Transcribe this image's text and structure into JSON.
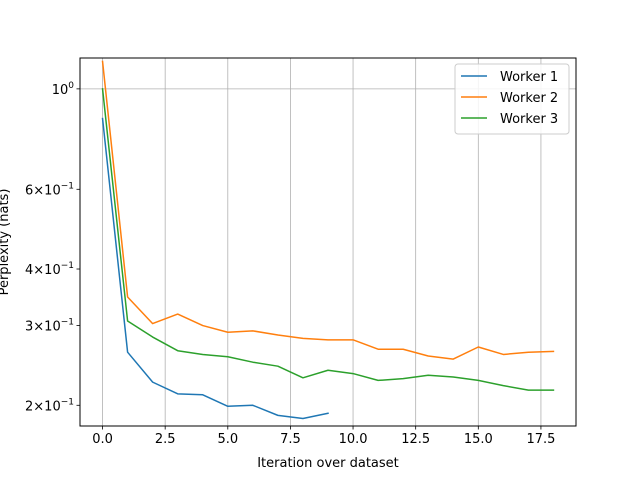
{
  "chart_data": {
    "type": "line",
    "xlabel": "Iteration over dataset",
    "ylabel": "Perplexity (nats)",
    "xscale": "linear",
    "yscale": "log",
    "xlim": [
      -0.9,
      18.9
    ],
    "ylim": [
      0.18,
      1.17
    ],
    "grid": "x and y major",
    "legend_position": "top-right",
    "x_ticks": [
      {
        "value": 0,
        "label": "0.0"
      },
      {
        "value": 2.5,
        "label": "2.5"
      },
      {
        "value": 5,
        "label": "5.0"
      },
      {
        "value": 7.5,
        "label": "7.5"
      },
      {
        "value": 10,
        "label": "10.0"
      },
      {
        "value": 12.5,
        "label": "12.5"
      },
      {
        "value": 15,
        "label": "15.0"
      },
      {
        "value": 17.5,
        "label": "17.5"
      }
    ],
    "y_ticks": [
      {
        "value": 0.2,
        "mantissa": "2",
        "base": "10",
        "exp": "−1"
      },
      {
        "value": 0.3,
        "mantissa": "3",
        "base": "10",
        "exp": "−1"
      },
      {
        "value": 0.4,
        "mantissa": "4",
        "base": "10",
        "exp": "−1"
      },
      {
        "value": 0.6,
        "mantissa": "6",
        "base": "10",
        "exp": "−1"
      },
      {
        "value": 1.0,
        "mantissa": "",
        "base": "10",
        "exp": "0"
      }
    ],
    "series": [
      {
        "name": "Worker 1",
        "color": "#1f77b4",
        "x": [
          0,
          1,
          2,
          3,
          4,
          5,
          6,
          7,
          8,
          9
        ],
        "y": [
          0.86,
          0.262,
          0.225,
          0.212,
          0.211,
          0.199,
          0.2,
          0.19,
          0.187,
          0.192
        ]
      },
      {
        "name": "Worker 2",
        "color": "#ff7f0e",
        "x": [
          0,
          1,
          2,
          3,
          4,
          5,
          6,
          7,
          8,
          9,
          10,
          11,
          12,
          13,
          14,
          15,
          16,
          17,
          18
        ],
        "y": [
          1.15,
          0.347,
          0.303,
          0.318,
          0.3,
          0.29,
          0.292,
          0.286,
          0.281,
          0.279,
          0.279,
          0.266,
          0.266,
          0.257,
          0.253,
          0.269,
          0.259,
          0.262,
          0.263
        ]
      },
      {
        "name": "Worker 3",
        "color": "#2ca02c",
        "x": [
          0,
          1,
          2,
          3,
          4,
          5,
          6,
          7,
          8,
          9,
          10,
          11,
          12,
          13,
          14,
          15,
          16,
          17,
          18
        ],
        "y": [
          1.0,
          0.307,
          0.283,
          0.264,
          0.259,
          0.256,
          0.249,
          0.244,
          0.23,
          0.239,
          0.235,
          0.227,
          0.229,
          0.233,
          0.231,
          0.227,
          0.221,
          0.216,
          0.216
        ]
      }
    ]
  }
}
